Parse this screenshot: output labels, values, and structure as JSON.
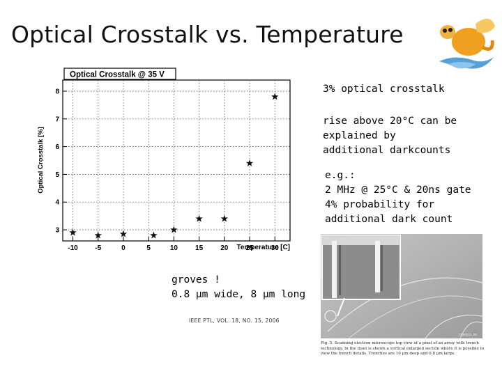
{
  "slide": {
    "title": "Optical Crosstalk vs. Temperature"
  },
  "notes": {
    "crosstalk": "3% optical crosstalk",
    "rise": "rise above 20°C can be\nexplained by\nadditional darkcounts",
    "example": "e.g.:\n2 MHz @ 25°C & 20ns gate\n4% probability for\nadditional dark count",
    "groves": "groves !\n0.8 µm wide, 8 µm long"
  },
  "citation": "IEEE PTL, VOL. 18, NO. 15, 2006",
  "figure": {
    "tag": "YA60012_06",
    "caption": "Fig. 5.   Scanning electron microscope top view of a pixel of an array with trench technology. In the inset is shown a vertical enlarged section where it is possible to view the trench details. Trenches are 10 µm deep and 0.8 µm large."
  },
  "colors": {
    "marker": "#111111",
    "grid": "#555555",
    "sem_background": "#b4b4b4",
    "logo_body": "#f0a020",
    "logo_water": "#3a8fd0"
  },
  "chart_data": {
    "type": "scatter",
    "title": "Optical Crosstalk @ 35 V",
    "xlabel": "Temperature [C]",
    "ylabel": "Optical Crosstalk [%]",
    "xlim": [
      -12,
      33
    ],
    "ylim": [
      2.6,
      8.4
    ],
    "grid": true,
    "x_ticks": [
      -10,
      -5,
      0,
      5,
      10,
      15,
      20,
      25,
      30
    ],
    "y_ticks": [
      3,
      4,
      5,
      6,
      7,
      8
    ],
    "marker": "star",
    "x": [
      -10,
      -5,
      0,
      6,
      10,
      15,
      20,
      25,
      30
    ],
    "y": [
      2.9,
      2.8,
      2.85,
      2.8,
      3.0,
      3.4,
      3.4,
      5.4,
      7.8
    ]
  }
}
